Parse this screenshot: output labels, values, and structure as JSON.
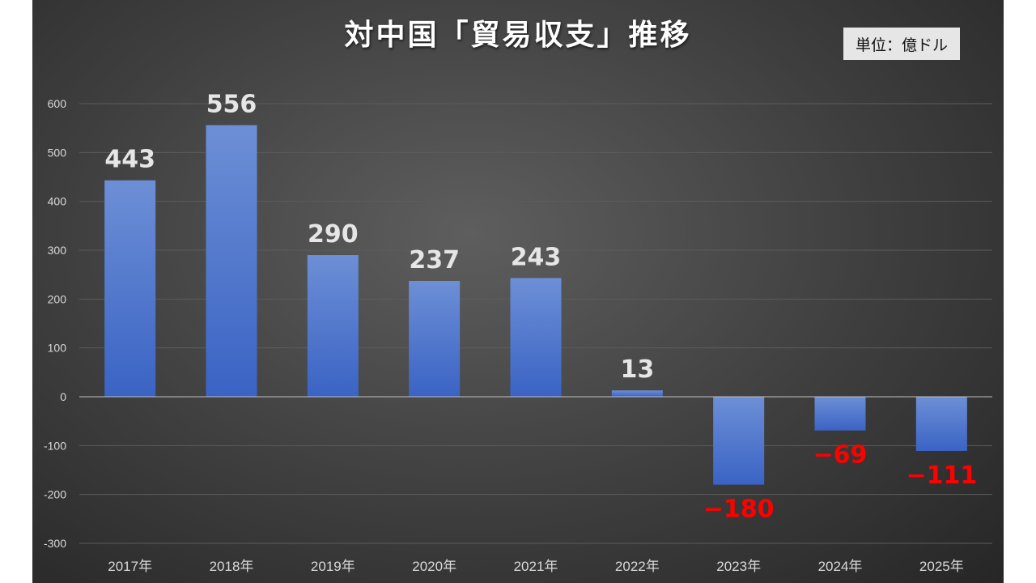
{
  "title": "対中国「貿易収支」推移",
  "unit": "単位：億ドル",
  "colors": {
    "bar_top": "#6d8fd6",
    "bar_bottom": "#3a63c4",
    "positive_label": "#e6e6e6",
    "negative_label": "#ff0000"
  },
  "chart_data": {
    "type": "bar",
    "title": "対中国「貿易収支」推移",
    "categories": [
      "2017年",
      "2018年",
      "2019年",
      "2020年",
      "2021年",
      "2022年",
      "2023年",
      "2024年",
      "2025年"
    ],
    "values": [
      443,
      556,
      290,
      237,
      243,
      13,
      -180,
      -69,
      -111
    ],
    "data_labels": [
      "443",
      "556",
      "290",
      "237",
      "243",
      "13",
      "−180",
      "−69",
      "−111"
    ],
    "yticks": [
      600,
      500,
      400,
      300,
      200,
      100,
      0,
      -100,
      -200,
      -300
    ],
    "ylim": [
      -300,
      600
    ],
    "grid": true,
    "xlabel": "",
    "ylabel": ""
  }
}
